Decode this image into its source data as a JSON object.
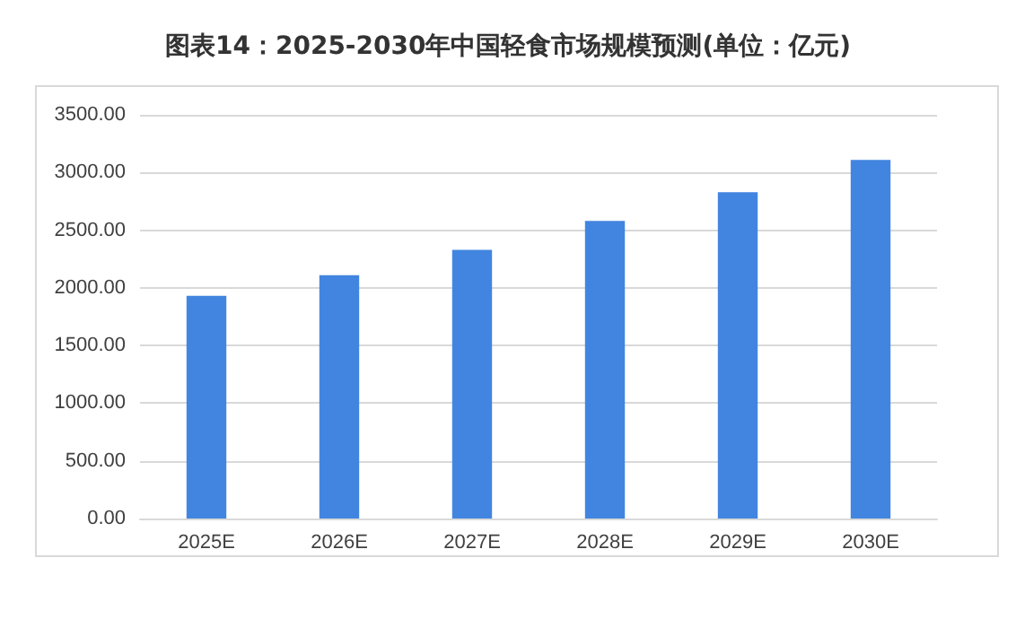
{
  "chart_data": {
    "type": "bar",
    "title": "图表14：2025-2030年中国轻食市场规模预测(单位：亿元)",
    "categories": [
      "2025E",
      "2026E",
      "2027E",
      "2028E",
      "2029E",
      "2030E"
    ],
    "values": [
      1930,
      2110,
      2330,
      2580,
      2830,
      3110
    ],
    "color": "#4285e0",
    "ylim": [
      0,
      3500
    ],
    "yticks": [
      {
        "value": 0,
        "label": "0.00"
      },
      {
        "value": 500,
        "label": "500.00"
      },
      {
        "value": 1000,
        "label": "1000.00"
      },
      {
        "value": 1500,
        "label": "1500.00"
      },
      {
        "value": 2000,
        "label": "2000.00"
      },
      {
        "value": 2500,
        "label": "2500.00"
      },
      {
        "value": 3000,
        "label": "3000.00"
      },
      {
        "value": 3500,
        "label": "3500.00"
      }
    ],
    "grid": "y"
  }
}
